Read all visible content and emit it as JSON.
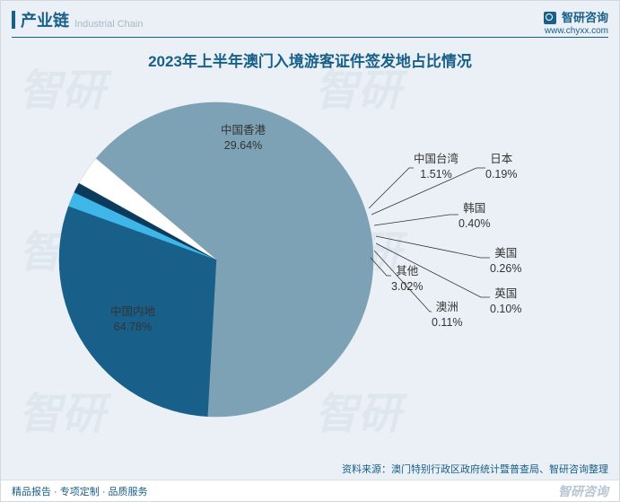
{
  "header": {
    "title_cn": "产业链",
    "title_en": "Industrial Chain"
  },
  "brand": {
    "name": "智研咨询",
    "url": "www.chyxx.com"
  },
  "chart": {
    "title": "2023年上半年澳门入境游客证件签发地占比情况",
    "type": "pie",
    "background_color": "#eaf0f5",
    "line_color": "#333333",
    "slices": [
      {
        "label": "中国内地",
        "value": 64.78,
        "color": "#7da2b5",
        "display": "64.78%"
      },
      {
        "label": "中国香港",
        "value": 29.64,
        "color": "#18608a",
        "display": "29.64%"
      },
      {
        "label": "中国台湾",
        "value": 1.51,
        "color": "#3fb6e8",
        "display": "1.51%"
      },
      {
        "label": "日本",
        "value": 0.19,
        "color": "#0b3b5c",
        "display": "0.19%"
      },
      {
        "label": "韩国",
        "value": 0.4,
        "color": "#0b3b5c",
        "display": "0.40%"
      },
      {
        "label": "美国",
        "value": 0.26,
        "color": "#0b3b5c",
        "display": "0.26%"
      },
      {
        "label": "英国",
        "value": 0.1,
        "color": "#0b3b5c",
        "display": "0.10%"
      },
      {
        "label": "澳洲",
        "value": 0.11,
        "color": "#0b3b5c",
        "display": "0.11%"
      },
      {
        "label": "其他",
        "value": 3.02,
        "color": "#ffffff",
        "display": "3.02%"
      }
    ],
    "label_fontsize": 12.5,
    "title_fontsize": 17,
    "title_color": "#18608a"
  },
  "source": "资料来源：澳门特别行政区政府统计暨普查局、智研咨询整理",
  "footer": {
    "left": "精品报告 · 专项定制 · 品质服务",
    "right": "智研咨询"
  },
  "watermark": "智研"
}
